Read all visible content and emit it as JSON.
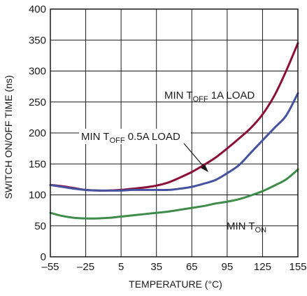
{
  "chart_data": {
    "type": "line",
    "title": "",
    "xlabel": "TEMPERATURE (°C)",
    "ylabel": "SWITCH ON/OFF TIME (ns)",
    "xlim": [
      -55,
      155
    ],
    "ylim": [
      0,
      400
    ],
    "x_ticks": [
      -55,
      -25,
      5,
      35,
      65,
      95,
      125,
      155
    ],
    "y_ticks": [
      0,
      50,
      100,
      150,
      200,
      250,
      300,
      350,
      400
    ],
    "x_tick_labels": [
      "–55",
      "–25",
      "5",
      "35",
      "65",
      "95",
      "125",
      "155"
    ],
    "y_tick_labels": [
      "0",
      "50",
      "100",
      "150",
      "200",
      "250",
      "300",
      "350",
      "400"
    ],
    "grid": true,
    "series": [
      {
        "color": "#8b0f3a",
        "x": [
          -55,
          -45,
          -35,
          -25,
          -15,
          -5,
          5,
          15,
          25,
          35,
          45,
          55,
          65,
          75,
          85,
          95,
          105,
          115,
          125,
          135,
          145,
          155
        ],
        "y": [
          116,
          114,
          111,
          108,
          107,
          107,
          108,
          110,
          112,
          115,
          120,
          128,
          137,
          148,
          160,
          175,
          191,
          208,
          230,
          260,
          300,
          345
        ]
      },
      {
        "color": "#4552a0",
        "x": [
          -55,
          -45,
          -35,
          -25,
          -15,
          -5,
          5,
          15,
          25,
          35,
          45,
          55,
          65,
          75,
          85,
          95,
          105,
          115,
          125,
          135,
          145,
          155
        ],
        "y": [
          116,
          113,
          110,
          108,
          107,
          107,
          107,
          108,
          108,
          108,
          108,
          110,
          113,
          118,
          124,
          135,
          148,
          168,
          188,
          208,
          228,
          264
        ]
      },
      {
        "color": "#3d8c4a",
        "x": [
          -55,
          -45,
          -35,
          -25,
          -15,
          -5,
          5,
          15,
          25,
          35,
          45,
          55,
          65,
          75,
          85,
          95,
          105,
          115,
          125,
          135,
          145,
          155
        ],
        "y": [
          71,
          66,
          63,
          62,
          62,
          63,
          65,
          67,
          69,
          71,
          73,
          76,
          79,
          82,
          86,
          89,
          93,
          99,
          106,
          115,
          125,
          141
        ]
      }
    ],
    "annotations": {
      "toff_1a": {
        "main": "MIN T",
        "sub": "OFF",
        "rest": " 1A LOAD"
      },
      "toff_05a": {
        "main": "MIN T",
        "sub": "OFF",
        "rest": " 0.5A LOAD"
      },
      "ton": {
        "main": "MIN T",
        "sub": "ON",
        "rest": ""
      }
    }
  }
}
